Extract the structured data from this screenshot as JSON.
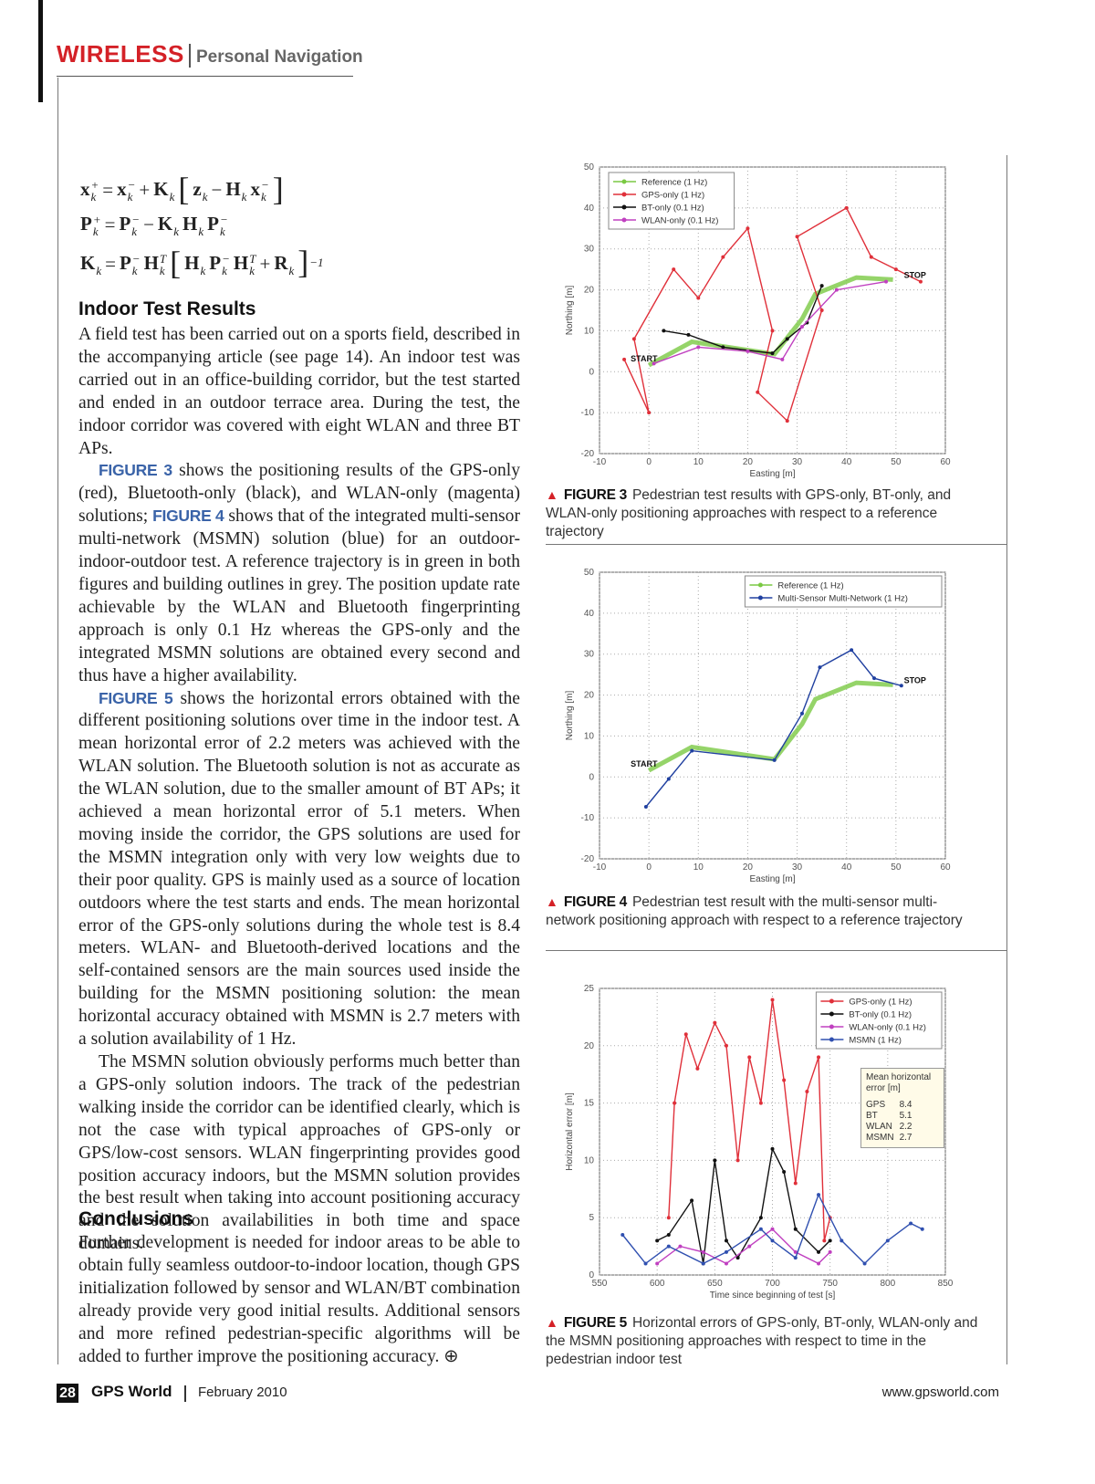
{
  "header": {
    "section": "WIRELESS",
    "subsection": "Personal Navigation"
  },
  "equations": [
    [
      {
        "t": "x",
        "sub": "k",
        "sup": "+"
      },
      {
        "t": "="
      },
      {
        "t": "x",
        "sub": "k",
        "sup": "−"
      },
      {
        "t": "+"
      },
      {
        "t": "K",
        "sub": "k"
      },
      {
        "t": "["
      },
      {
        "t": "z",
        "sub": "k"
      },
      {
        "t": "−"
      },
      {
        "t": "H",
        "sub": "k"
      },
      {
        "t": "x",
        "sub": "k",
        "sup": "−"
      },
      {
        "t": "]"
      }
    ],
    [
      {
        "t": "P",
        "sub": "k",
        "sup": "+"
      },
      {
        "t": "="
      },
      {
        "t": "P",
        "sub": "k",
        "sup": "−"
      },
      {
        "t": "−"
      },
      {
        "t": "K",
        "sub": "k"
      },
      {
        "t": "H",
        "sub": "k"
      },
      {
        "t": "P",
        "sub": "k",
        "sup": "−"
      }
    ],
    [
      {
        "t": "K",
        "sub": "k"
      },
      {
        "t": "="
      },
      {
        "t": "P",
        "sub": "k",
        "sup": "−"
      },
      {
        "t": "H",
        "sub": "k",
        "sup": "T"
      },
      {
        "t": "["
      },
      {
        "t": "H",
        "sub": "k"
      },
      {
        "t": "P",
        "sub": "k",
        "sup": "−"
      },
      {
        "t": "H",
        "sub": "k",
        "sup": "T"
      },
      {
        "t": "+"
      },
      {
        "t": "R",
        "sub": "k"
      },
      {
        "t": "]",
        "sup": "−1"
      }
    ]
  ],
  "sections": [
    {
      "heading": "Indoor Test Results",
      "paragraphs": [
        [
          {
            "text": "A field test has been carried out on a sports field, described in the accompanying article (see page 14). An indoor test was carried out in an office-building corridor, but the test started and ended in an outdoor terrace area. During the test, the indoor corridor was covered with eight WLAN and three BT APs."
          }
        ],
        [
          {
            "ref": "FIGURE 3"
          },
          {
            "text": " shows the positioning results of the GPS-only (red), Bluetooth-only (black), and WLAN-only (magenta) solutions; "
          },
          {
            "ref": "FIGURE 4"
          },
          {
            "text": " shows that of the integrated multi-sensor multi-network (MSMN) solution (blue) for an outdoor-indoor-outdoor test. A reference trajectory is in green in both figures and building outlines in grey. The position update rate achievable by the WLAN and Bluetooth fingerprinting approach is only 0.1 Hz whereas the GPS-only and the integrated MSMN solutions are obtained every second and thus have a higher availability."
          }
        ],
        [
          {
            "ref": "FIGURE 5"
          },
          {
            "text": " shows the horizontal errors obtained with the different positioning solutions over time in the indoor test. A mean horizontal error of 2.2 meters was achieved with the WLAN solution. The Bluetooth solution is not as accurate as the WLAN solution, due to the smaller amount of BT APs; it achieved a mean horizontal error of 5.1 meters. When moving inside the corridor, the GPS solutions are used for the MSMN integration only with very low weights due to their poor quality. GPS is mainly used as a source of location outdoors where the test starts and ends. The mean horizontal error of the GPS-only solutions during the whole test is 8.4 meters. WLAN- and Bluetooth-derived locations and the self-contained sensors are the main sources used inside the building for the MSMN positioning solution: the mean horizontal accuracy obtained with MSMN is 2.7 meters with a solution availability of 1 Hz."
          }
        ],
        [
          {
            "text": "The MSMN solution obviously performs much better than a GPS-only solution indoors. The track of the pedestrian walking inside the corridor can be identified clearly, which is not the case with typical approaches of GPS-only or GPS/low-cost sensors. WLAN fingerprinting provides good position accuracy indoors, but the MSMN solution provides the best result when taking into account positioning accuracy and the solution availabilities in both time and space domains."
          }
        ]
      ]
    },
    {
      "heading": "Conclusions",
      "paragraphs": [
        [
          {
            "text": "Further development is needed for indoor areas to be able to obtain fully seamless outdoor-to-indoor location, though GPS initialization followed by sensor and WLAN/BT combination already provide very good initial results. Additional sensors and more refined pedestrian-specific algorithms will be added to further improve the positioning accuracy."
          }
        ]
      ]
    }
  ],
  "figures": [
    {
      "label": "FIGURE 3",
      "caption": "Pedestrian test results with GPS-only, BT-only, and WLAN-only positioning approaches with respect to a reference trajectory",
      "chart": {
        "type": "line",
        "xlabel": "Easting [m]",
        "ylabel": "Northing [m]",
        "xlim": [
          -10,
          60
        ],
        "ylim": [
          -20,
          50
        ],
        "xticks": [
          -10,
          0,
          10,
          20,
          30,
          40,
          50,
          60
        ],
        "yticks": [
          -20,
          -10,
          0,
          10,
          20,
          30,
          40,
          50
        ],
        "grid": true,
        "legend": "upper left",
        "annotations": {
          "start": "START",
          "stop": "STOP"
        },
        "series": [
          {
            "name": "Reference (1 Hz)",
            "color": "#7ac943",
            "x": [
              0,
              8.7,
              25.4,
              31,
              33.7,
              42,
              49.4
            ],
            "values": [
              1.6,
              7.3,
              4.3,
              12.9,
              19,
              23,
              22.5
            ]
          },
          {
            "name": "GPS-only (1 Hz)",
            "color": "#e0303a",
            "x": [
              -5,
              0,
              -3,
              5,
              10,
              15,
              20,
              25,
              22,
              28,
              35,
              30,
              40,
              45,
              50,
              55
            ],
            "values": [
              3,
              -10,
              8,
              25,
              18,
              28,
              35,
              10,
              -5,
              -12,
              15,
              33,
              40,
              28,
              25,
              22
            ]
          },
          {
            "name": "BT-only (0.1 Hz)",
            "color": "#111111",
            "x": [
              3,
              8,
              15,
              25,
              28,
              32,
              35
            ],
            "values": [
              10,
              9,
              6,
              4.5,
              8,
              12,
              21
            ]
          },
          {
            "name": "WLAN-only (0.1 Hz)",
            "color": "#c040c0",
            "x": [
              1,
              10,
              20,
              27,
              31,
              38,
              48
            ],
            "values": [
              2,
              6,
              5,
              3,
              11,
              20,
              22
            ]
          }
        ]
      }
    },
    {
      "label": "FIGURE 4",
      "caption": "Pedestrian test result with the multi-sensor multi-network positioning approach with respect to a reference trajectory",
      "chart": {
        "type": "line",
        "xlabel": "Easting [m]",
        "ylabel": "Northing [m]",
        "xlim": [
          -10,
          60
        ],
        "ylim": [
          -20,
          50
        ],
        "xticks": [
          -10,
          0,
          10,
          20,
          30,
          40,
          50,
          60
        ],
        "yticks": [
          -20,
          -10,
          0,
          10,
          20,
          30,
          40,
          50
        ],
        "grid": true,
        "legend": "upper right",
        "annotations": {
          "start": "START",
          "stop": "STOP"
        },
        "series": [
          {
            "name": "Reference (1 Hz)",
            "color": "#7ac943",
            "x": [
              0,
              8.7,
              25.4,
              31,
              33.7,
              42,
              49.4
            ],
            "values": [
              1.6,
              7.3,
              4.3,
              12.9,
              19,
              23,
              22.5
            ]
          },
          {
            "name": "Multi-Sensor Multi-Network (1 Hz)",
            "color": "#2040a0",
            "x": [
              -0.6,
              4,
              8.7,
              25.4,
              31,
              34.6,
              41,
              45.6,
              51.1
            ],
            "values": [
              -7.3,
              -0.5,
              6.4,
              4.1,
              15.5,
              26.8,
              31,
              24.1,
              22.3
            ]
          }
        ]
      }
    },
    {
      "label": "FIGURE 5",
      "caption": "Horizontal errors of GPS-only, BT-only, WLAN-only and the MSMN positioning approaches with respect to time in the pedestrian indoor test",
      "chart": {
        "type": "line",
        "xlabel": "Time since beginning of test [s]",
        "ylabel": "Horizontal error [m]",
        "xlim": [
          550,
          850
        ],
        "ylim": [
          0,
          25
        ],
        "xticks": [
          550,
          600,
          650,
          700,
          750,
          800,
          850
        ],
        "yticks": [
          0,
          5,
          10,
          15,
          20,
          25
        ],
        "grid": true,
        "legend": "upper right",
        "mean_error": {
          "title": "Mean horizontal error [m]",
          "rows": [
            [
              "GPS",
              8.4
            ],
            [
              "BT",
              5.1
            ],
            [
              "WLAN",
              2.2
            ],
            [
              "MSMN",
              2.7
            ]
          ]
        },
        "series": [
          {
            "name": "GPS-only (1 Hz)",
            "color": "#e0303a",
            "x": [
              610,
              615,
              625,
              635,
              650,
              660,
              670,
              680,
              690,
              700,
              710,
              720,
              730,
              740,
              745,
              750
            ],
            "values": [
              5,
              15,
              21,
              18,
              22,
              20,
              10,
              19,
              15,
              24,
              17,
              8,
              16,
              19,
              3,
              5
            ]
          },
          {
            "name": "BT-only (0.1 Hz)",
            "color": "#111111",
            "x": [
              600,
              610,
              630,
              640,
              650,
              660,
              670,
              690,
              700,
              710,
              720,
              740,
              750
            ],
            "values": [
              3,
              3.5,
              6.5,
              1,
              10,
              3,
              1.5,
              5,
              11,
              9,
              4,
              2,
              3
            ]
          },
          {
            "name": "WLAN-only (0.1 Hz)",
            "color": "#c040c0",
            "x": [
              600,
              620,
              640,
              660,
              680,
              700,
              720,
              740,
              750
            ],
            "values": [
              1,
              2.5,
              2,
              1,
              2.5,
              4,
              2,
              1,
              2
            ]
          },
          {
            "name": "MSMN (1 Hz)",
            "color": "#3050b0",
            "x": [
              570,
              590,
              610,
              640,
              660,
              690,
              700,
              720,
              740,
              760,
              780,
              800,
              820,
              830
            ],
            "values": [
              3.5,
              1,
              2.5,
              1,
              2,
              4,
              3,
              1.5,
              7,
              3,
              1,
              3,
              4.5,
              4
            ]
          }
        ]
      }
    }
  ],
  "footer": {
    "page": "28",
    "magazine": "GPS World",
    "date": "February 2010",
    "url": "www.gpsworld.com"
  }
}
